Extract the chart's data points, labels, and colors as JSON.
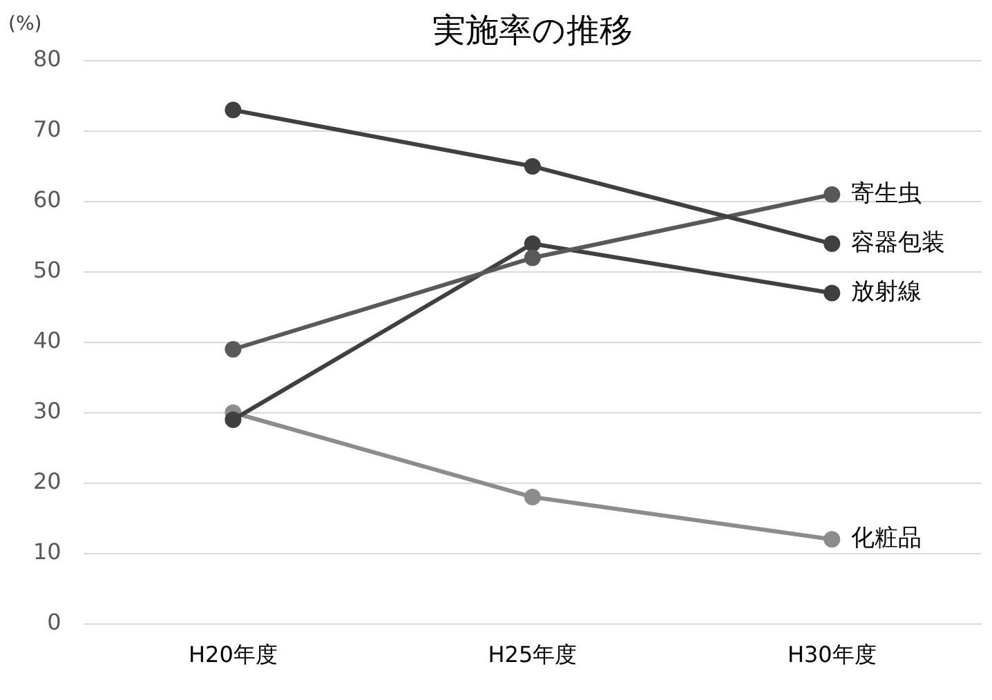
{
  "chart_data": {
    "type": "line",
    "title": "実施率の推移",
    "ylabel": "(%)",
    "categories": [
      "H20年度",
      "H25年度",
      "H30年度"
    ],
    "series": [
      {
        "name": "容器包装",
        "color": "#404040",
        "values": [
          73,
          65,
          54
        ]
      },
      {
        "name": "寄生虫",
        "color": "#595959",
        "values": [
          39,
          52,
          61
        ]
      },
      {
        "name": "放射線",
        "color": "#404040",
        "values": [
          29,
          54,
          47
        ]
      },
      {
        "name": "化粧品",
        "color": "#8c8c8c",
        "values": [
          30,
          18,
          12
        ]
      }
    ],
    "ylim": [
      0,
      80
    ],
    "yticks": [
      0,
      10,
      20,
      30,
      40,
      50,
      60,
      70,
      80
    ],
    "grid": "y",
    "legend": false,
    "marker": "circle",
    "line_style": "solid"
  }
}
